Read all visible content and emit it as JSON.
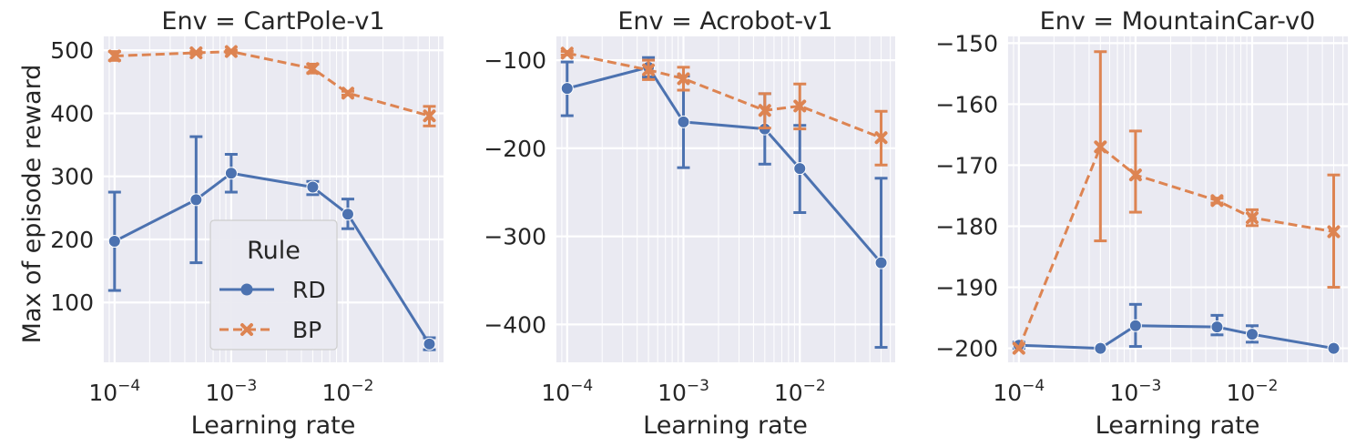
{
  "figure": {
    "ylabel": "Max of episode reward",
    "xlabel": "Learning rate",
    "legend": {
      "title": "Rule",
      "placement": "lower-right of first panel",
      "entries": [
        {
          "name": "RD",
          "color": "#4c72b0",
          "marker": "circle",
          "linestyle": "solid"
        },
        {
          "name": "BP",
          "color": "#dd8452",
          "marker": "x",
          "linestyle": "dashed"
        }
      ]
    },
    "background_color": "#eaeaf2",
    "grid": "on (major and minor, white)"
  },
  "chart_data": [
    {
      "type": "line",
      "title": "Env = CartPole-v1",
      "xscale": "log",
      "x": [
        0.0001,
        0.0005,
        0.001,
        0.005,
        0.01,
        0.05
      ],
      "xticks": [
        {
          "value": 0.0001,
          "exp": "−4"
        },
        {
          "value": 0.001,
          "exp": "−3"
        },
        {
          "value": 0.01,
          "exp": "−2"
        }
      ],
      "ylim": [
        5,
        522
      ],
      "yticks": [
        {
          "value": 100,
          "label": "100"
        },
        {
          "value": 200,
          "label": "200"
        },
        {
          "value": 300,
          "label": "300"
        },
        {
          "value": 400,
          "label": "400"
        },
        {
          "value": 500,
          "label": "500"
        }
      ],
      "series": [
        {
          "name": "RD",
          "values": [
            197,
            263,
            305,
            283,
            240,
            34
          ],
          "err_low": [
            119,
            163,
            275,
            271,
            217,
            25
          ],
          "err_high": [
            275,
            363,
            335,
            292,
            264,
            44
          ]
        },
        {
          "name": "BP",
          "values": [
            491,
            496,
            498,
            471,
            432,
            396
          ],
          "err_low": [
            484,
            494,
            496,
            464,
            429,
            380
          ],
          "err_high": [
            498,
            498,
            500,
            478,
            435,
            411
          ]
        }
      ]
    },
    {
      "type": "line",
      "title": "Env = Acrobot-v1",
      "xscale": "log",
      "x": [
        0.0001,
        0.0005,
        0.001,
        0.005,
        0.01,
        0.05
      ],
      "xticks": [
        {
          "value": 0.0001,
          "exp": "−4"
        },
        {
          "value": 0.001,
          "exp": "−3"
        },
        {
          "value": 0.01,
          "exp": "−2"
        }
      ],
      "ylim": [
        -443,
        -73
      ],
      "yticks": [
        {
          "value": -400,
          "label": "−400"
        },
        {
          "value": -300,
          "label": "−300"
        },
        {
          "value": -200,
          "label": "−200"
        },
        {
          "value": -100,
          "label": "−100"
        }
      ],
      "series": [
        {
          "name": "RD",
          "values": [
            -132,
            -108,
            -170,
            -178,
            -223,
            -330
          ],
          "err_low": [
            -163,
            -119,
            -222,
            -218,
            -273,
            -426
          ],
          "err_high": [
            -102,
            -97,
            -118,
            -138,
            -174,
            -234
          ]
        },
        {
          "name": "BP",
          "values": [
            -92,
            -111,
            -121,
            -157,
            -152,
            -188
          ],
          "err_low": [
            -94,
            -122,
            -134,
            -177,
            -178,
            -219
          ],
          "err_high": [
            -90,
            -100,
            -108,
            -138,
            -127,
            -158
          ]
        }
      ]
    },
    {
      "type": "line",
      "title": "Env = MountainCar-v0",
      "xscale": "log",
      "x": [
        0.0001,
        0.0005,
        0.001,
        0.005,
        0.01,
        0.05
      ],
      "xticks": [
        {
          "value": 0.0001,
          "exp": "−4"
        },
        {
          "value": 0.001,
          "exp": "−3"
        },
        {
          "value": 0.01,
          "exp": "−2"
        }
      ],
      "ylim": [
        -202.3,
        -148.9
      ],
      "yticks": [
        {
          "value": -200,
          "label": "−200"
        },
        {
          "value": -190,
          "label": "−190"
        },
        {
          "value": -180,
          "label": "−180"
        },
        {
          "value": -170,
          "label": "−170"
        },
        {
          "value": -160,
          "label": "−160"
        },
        {
          "value": -150,
          "label": "−150"
        }
      ],
      "series": [
        {
          "name": "RD",
          "values": [
            -199.5,
            -200.0,
            -196.3,
            -196.5,
            -197.7,
            -200.0
          ],
          "err_low": [
            -200.0,
            -200.0,
            -199.7,
            -197.8,
            -199.0,
            -200.0
          ],
          "err_high": [
            -199.0,
            -200.0,
            -192.8,
            -194.6,
            -196.3,
            -200.0
          ]
        },
        {
          "name": "BP",
          "values": [
            -200.0,
            -167.0,
            -171.6,
            -175.8,
            -178.6,
            -180.9
          ],
          "err_low": [
            -200.0,
            -182.4,
            -177.7,
            -176.2,
            -179.9,
            -190.0
          ],
          "err_high": [
            -200.0,
            -151.4,
            -164.4,
            -175.4,
            -177.3,
            -171.6
          ]
        }
      ]
    }
  ]
}
